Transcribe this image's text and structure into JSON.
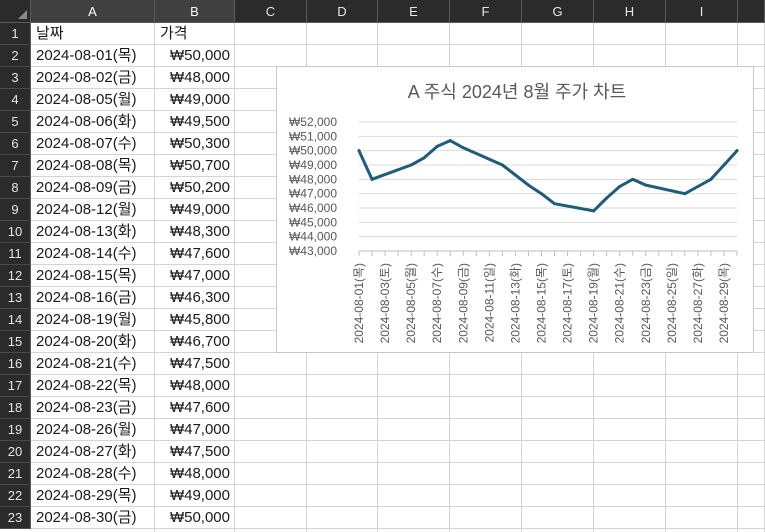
{
  "sheet": {
    "columns": [
      "A",
      "B",
      "C",
      "D",
      "E",
      "F",
      "G",
      "H",
      "I"
    ],
    "rows": [
      "1",
      "2",
      "3",
      "4",
      "5",
      "6",
      "7",
      "8",
      "9",
      "10",
      "11",
      "12",
      "13",
      "14",
      "15",
      "16",
      "17",
      "18",
      "19",
      "20",
      "21",
      "22",
      "23"
    ],
    "header_date": "날짜",
    "header_price": "가격",
    "data_rows": [
      {
        "date": "2024-08-01(목)",
        "price": "₩50,000"
      },
      {
        "date": "2024-08-02(금)",
        "price": "₩48,000"
      },
      {
        "date": "2024-08-05(월)",
        "price": "₩49,000"
      },
      {
        "date": "2024-08-06(화)",
        "price": "₩49,500"
      },
      {
        "date": "2024-08-07(수)",
        "price": "₩50,300"
      },
      {
        "date": "2024-08-08(목)",
        "price": "₩50,700"
      },
      {
        "date": "2024-08-09(금)",
        "price": "₩50,200"
      },
      {
        "date": "2024-08-12(월)",
        "price": "₩49,000"
      },
      {
        "date": "2024-08-13(화)",
        "price": "₩48,300"
      },
      {
        "date": "2024-08-14(수)",
        "price": "₩47,600"
      },
      {
        "date": "2024-08-15(목)",
        "price": "₩47,000"
      },
      {
        "date": "2024-08-16(금)",
        "price": "₩46,300"
      },
      {
        "date": "2024-08-19(월)",
        "price": "₩45,800"
      },
      {
        "date": "2024-08-20(화)",
        "price": "₩46,700"
      },
      {
        "date": "2024-08-21(수)",
        "price": "₩47,500"
      },
      {
        "date": "2024-08-22(목)",
        "price": "₩48,000"
      },
      {
        "date": "2024-08-23(금)",
        "price": "₩47,600"
      },
      {
        "date": "2024-08-26(월)",
        "price": "₩47,000"
      },
      {
        "date": "2024-08-27(화)",
        "price": "₩47,500"
      },
      {
        "date": "2024-08-28(수)",
        "price": "₩48,000"
      },
      {
        "date": "2024-08-29(목)",
        "price": "₩49,000"
      },
      {
        "date": "2024-08-30(금)",
        "price": "₩50,000"
      }
    ]
  },
  "chart_data": {
    "type": "line",
    "title": "A 주식 2024년 8월 주가 차트",
    "color": "#1f5c7a",
    "x": [
      "2024-08-01",
      "2024-08-02",
      "2024-08-05",
      "2024-08-06",
      "2024-08-07",
      "2024-08-08",
      "2024-08-09",
      "2024-08-12",
      "2024-08-13",
      "2024-08-14",
      "2024-08-15",
      "2024-08-16",
      "2024-08-19",
      "2024-08-20",
      "2024-08-21",
      "2024-08-22",
      "2024-08-23",
      "2024-08-26",
      "2024-08-27",
      "2024-08-28",
      "2024-08-29",
      "2024-08-30"
    ],
    "values": [
      50000,
      48000,
      49000,
      49500,
      50300,
      50700,
      50200,
      49000,
      48300,
      47600,
      47000,
      46300,
      45800,
      46700,
      47500,
      48000,
      47600,
      47000,
      47500,
      48000,
      49000,
      50000
    ],
    "xlim": [
      "2024-08-01",
      "2024-08-30"
    ],
    "ylim": [
      43000,
      52000
    ],
    "y_ticks": [
      "₩52,000",
      "₩51,000",
      "₩50,000",
      "₩49,000",
      "₩48,000",
      "₩47,000",
      "₩46,000",
      "₩45,000",
      "₩44,000",
      "₩43,000"
    ],
    "x_ticks": [
      "2024-08-01(목)",
      "2024-08-03(토)",
      "2024-08-05(월)",
      "2024-08-07(수)",
      "2024-08-09(금)",
      "2024-08-11(일)",
      "2024-08-13(화)",
      "2024-08-15(목)",
      "2024-08-17(토)",
      "2024-08-19(월)",
      "2024-08-21(수)",
      "2024-08-23(금)",
      "2024-08-25(일)",
      "2024-08-27(화)",
      "2024-08-29(목)"
    ],
    "grid": true,
    "legend": "none"
  }
}
